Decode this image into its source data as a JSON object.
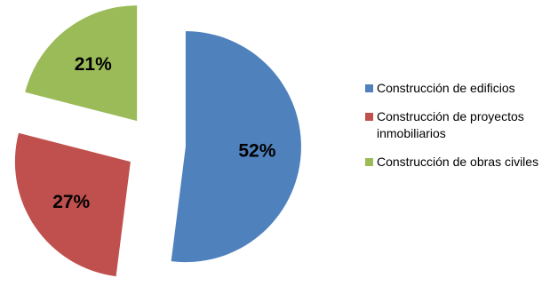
{
  "chart_data": {
    "type": "pie",
    "title": "",
    "labels": [
      "Construcción de edificios",
      "Construcción de proyectos inmobiliarios",
      "Construcción de obras civiles"
    ],
    "values": [
      52,
      27,
      21
    ],
    "value_labels": [
      "52%",
      "27%",
      "21%"
    ],
    "colors": [
      "#4F81BD",
      "#C0504D",
      "#9BBB59"
    ],
    "exploded": true,
    "legend": "right"
  },
  "legend": {
    "items": [
      {
        "label": "Construcción de edificios",
        "color": "#4F81BD"
      },
      {
        "label": "Construcción de proyectos inmobiliarios",
        "color": "#C0504D"
      },
      {
        "label": "Construcción de obras civiles",
        "color": "#9BBB59"
      }
    ]
  }
}
